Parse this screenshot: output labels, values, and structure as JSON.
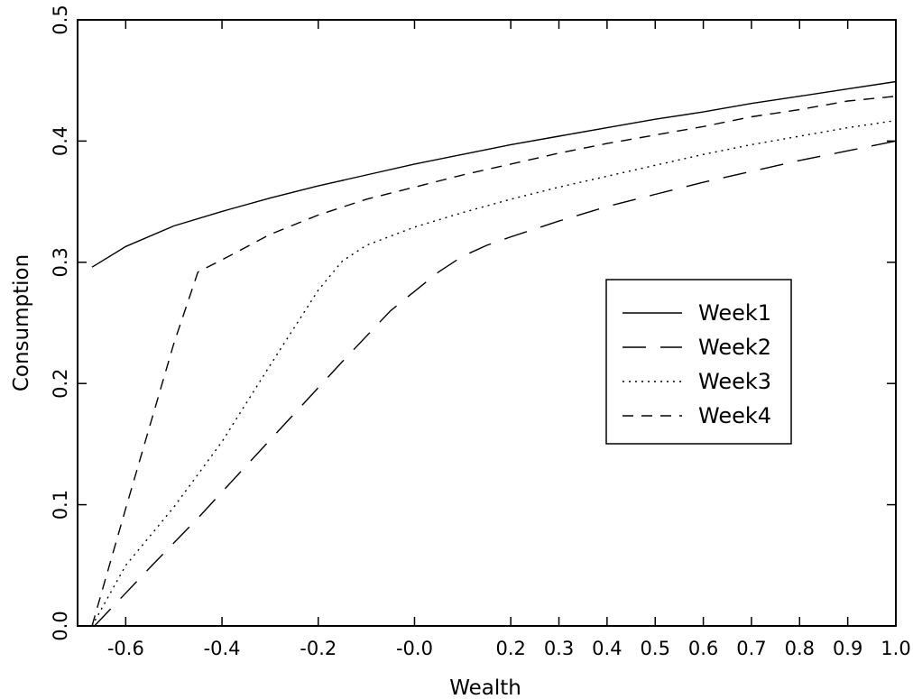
{
  "chart_data": {
    "type": "line",
    "title": "",
    "xlabel": "Wealth",
    "ylabel": "Consumption",
    "xlim": [
      -0.7,
      1.0
    ],
    "ylim": [
      0.0,
      0.5
    ],
    "x_ticks": [
      {
        "value": -0.6,
        "label": "-0.6"
      },
      {
        "value": -0.4,
        "label": "-0.4"
      },
      {
        "value": -0.2,
        "label": "-0.2"
      },
      {
        "value": 0.0,
        "label": "-0.0"
      },
      {
        "value": 0.2,
        "label": "0.2"
      },
      {
        "value": 0.3,
        "label": "0.3"
      },
      {
        "value": 0.4,
        "label": "0.4"
      },
      {
        "value": 0.5,
        "label": "0.5"
      },
      {
        "value": 0.6,
        "label": "0.6"
      },
      {
        "value": 0.7,
        "label": "0.7"
      },
      {
        "value": 0.8,
        "label": "0.8"
      },
      {
        "value": 0.9,
        "label": "0.9"
      },
      {
        "value": 1.0,
        "label": "1.0"
      }
    ],
    "y_ticks": [
      {
        "value": 0.0,
        "label": "0.0"
      },
      {
        "value": 0.1,
        "label": "0.1"
      },
      {
        "value": 0.2,
        "label": "0.2"
      },
      {
        "value": 0.3,
        "label": "0.3"
      },
      {
        "value": 0.4,
        "label": "0.4"
      },
      {
        "value": 0.5,
        "label": "0.5"
      }
    ],
    "grid": false,
    "legend_position": "center-right",
    "series": [
      {
        "name": "Week1",
        "dash": "solid",
        "x": [
          -0.67,
          -0.6,
          -0.5,
          -0.4,
          -0.3,
          -0.2,
          -0.1,
          0.0,
          0.1,
          0.2,
          0.3,
          0.4,
          0.5,
          0.6,
          0.7,
          0.8,
          0.9,
          1.0
        ],
        "y": [
          0.296,
          0.313,
          0.33,
          0.342,
          0.353,
          0.363,
          0.372,
          0.381,
          0.389,
          0.397,
          0.404,
          0.411,
          0.418,
          0.424,
          0.431,
          0.437,
          0.443,
          0.449
        ]
      },
      {
        "name": "Week2",
        "dash": "long-dash",
        "x": [
          -0.665,
          -0.55,
          -0.45,
          -0.35,
          -0.25,
          -0.15,
          -0.05,
          0.05,
          0.1,
          0.15,
          0.2,
          0.3,
          0.4,
          0.5,
          0.6,
          0.7,
          0.8,
          0.9,
          1.0
        ],
        "y": [
          0.0,
          0.048,
          0.089,
          0.132,
          0.175,
          0.218,
          0.26,
          0.292,
          0.305,
          0.314,
          0.321,
          0.334,
          0.346,
          0.356,
          0.366,
          0.375,
          0.384,
          0.392,
          0.4
        ]
      },
      {
        "name": "Week3",
        "dash": "dotted",
        "x": [
          -0.67,
          -0.6,
          -0.5,
          -0.4,
          -0.3,
          -0.2,
          -0.15,
          -0.1,
          0.0,
          0.1,
          0.2,
          0.3,
          0.4,
          0.5,
          0.6,
          0.7,
          0.8,
          0.9,
          1.0
        ],
        "y": [
          0.0,
          0.05,
          0.098,
          0.152,
          0.215,
          0.277,
          0.301,
          0.314,
          0.329,
          0.341,
          0.352,
          0.362,
          0.371,
          0.38,
          0.389,
          0.397,
          0.404,
          0.411,
          0.417
        ]
      },
      {
        "name": "Week4",
        "dash": "short-dash",
        "x": [
          -0.67,
          -0.6,
          -0.5,
          -0.45,
          -0.4,
          -0.3,
          -0.2,
          -0.1,
          0.0,
          0.1,
          0.2,
          0.3,
          0.4,
          0.5,
          0.6,
          0.7,
          0.8,
          0.9,
          1.0
        ],
        "y": [
          0.0,
          0.097,
          0.233,
          0.292,
          0.302,
          0.323,
          0.339,
          0.352,
          0.362,
          0.372,
          0.381,
          0.39,
          0.398,
          0.405,
          0.412,
          0.42,
          0.426,
          0.433,
          0.437
        ]
      }
    ]
  }
}
